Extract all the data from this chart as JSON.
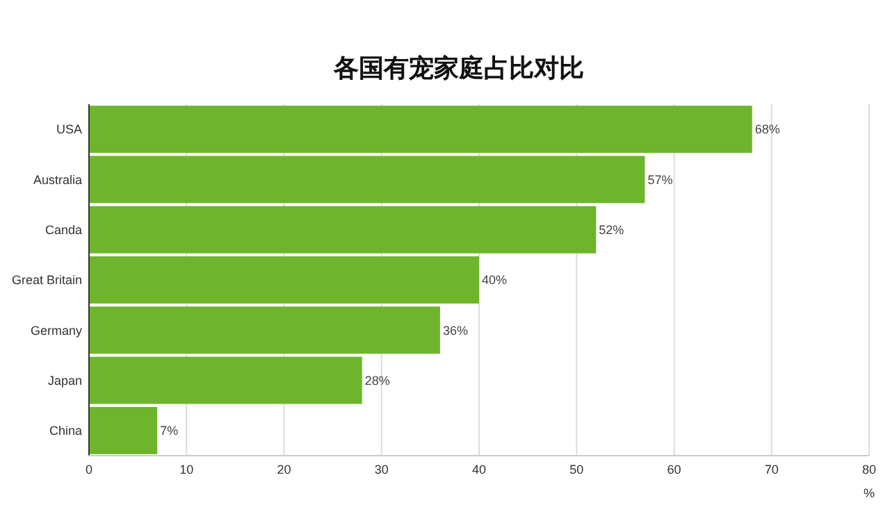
{
  "chart_data": {
    "type": "bar",
    "orientation": "horizontal",
    "title": "各国有宠家庭占比对比",
    "xlabel": "%",
    "categories": [
      "USA",
      "Australia",
      "Canda",
      "Great Britain",
      "Germany",
      "Japan",
      "China"
    ],
    "values": [
      68,
      57,
      52,
      40,
      36,
      28,
      7
    ],
    "value_labels": [
      "68%",
      "57%",
      "52%",
      "40%",
      "36%",
      "28%",
      "7%"
    ],
    "color": "#6eb52d",
    "xlim": [
      0,
      80
    ],
    "xticks": [
      0,
      10,
      20,
      30,
      40,
      50,
      60,
      70,
      80
    ],
    "grid": "x"
  }
}
